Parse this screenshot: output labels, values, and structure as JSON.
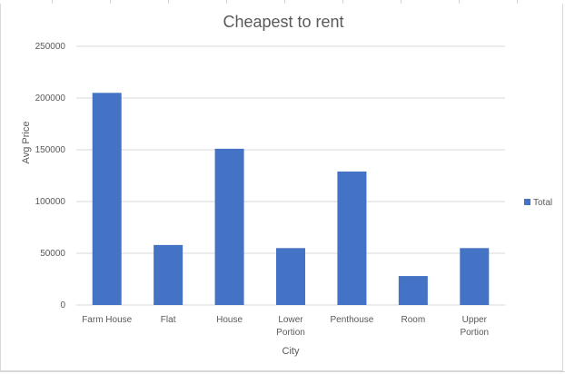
{
  "chart_data": {
    "type": "bar",
    "title": "Cheapest to rent",
    "xlabel": "City",
    "ylabel": "Avg Price",
    "ylim": [
      0,
      250000
    ],
    "yticks": [
      "0",
      "50000",
      "100000",
      "150000",
      "200000",
      "250000"
    ],
    "categories": [
      [
        "Farm House"
      ],
      [
        "Flat"
      ],
      [
        "House"
      ],
      [
        "Lower",
        "Portion"
      ],
      [
        "Penthouse"
      ],
      [
        "Room"
      ],
      [
        "Upper",
        "Portion"
      ]
    ],
    "series": [
      {
        "name": "Total",
        "color": "#4472C4",
        "values": [
          205000,
          58000,
          151000,
          55000,
          129000,
          28000,
          55000
        ]
      }
    ],
    "grid": true,
    "legend_position": "right"
  }
}
